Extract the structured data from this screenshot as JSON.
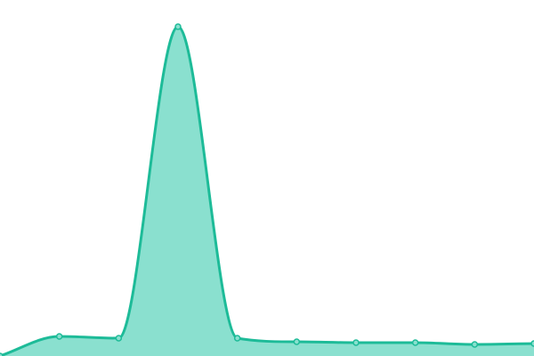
{
  "chart_data": {
    "type": "area",
    "smooth": true,
    "x": [
      0,
      1,
      2,
      3,
      4,
      5,
      6,
      7,
      8,
      9
    ],
    "values": [
      0,
      22,
      20,
      370,
      20,
      16,
      15,
      15,
      13,
      14
    ],
    "ylim": [
      0,
      370
    ],
    "grid": false,
    "axes_visible": false,
    "legend": "none",
    "colors": {
      "line": "#1dbb98",
      "fill": "#8ae0cf",
      "marker_fill": "#8ae0cf"
    }
  }
}
